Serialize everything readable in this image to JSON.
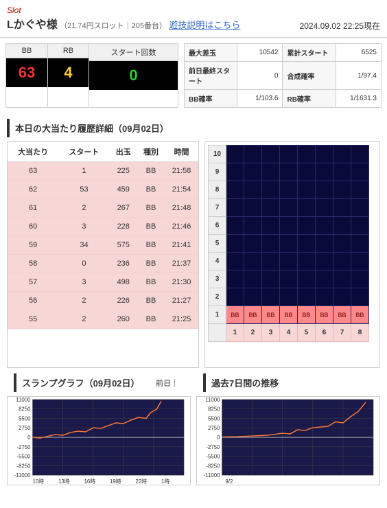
{
  "header": {
    "slot_label": "Slot",
    "machine_name": "Lかぐや様",
    "machine_sub": "（21.74円スロット｜205番台）",
    "guide_link": "遊技説明はこちら",
    "timestamp": "2024.09.02 22:25現在"
  },
  "counters": {
    "bb_label": "BB",
    "bb_value": "63",
    "rb_label": "RB",
    "rb_value": "4",
    "start_label": "スタート回数",
    "start_value": "0"
  },
  "stats": {
    "rows": [
      {
        "l1": "最大差玉",
        "v1": "10542",
        "l2": "累計スタート",
        "v2": "6525"
      },
      {
        "l1": "前日最終スタート",
        "v1": "0",
        "l2": "合成確率",
        "v2": "1/97.4"
      },
      {
        "l1": "BB確率",
        "v1": "1/103.6",
        "l2": "RB確率",
        "v2": "1/1631.3"
      }
    ]
  },
  "history": {
    "title": "本日の大当たり履歴詳細（09月02日）",
    "headers": [
      "大当たり",
      "スタート",
      "出玉",
      "種別",
      "時間"
    ],
    "rows": [
      [
        "63",
        "1",
        "225",
        "BB",
        "21:58"
      ],
      [
        "62",
        "53",
        "459",
        "BB",
        "21:54"
      ],
      [
        "61",
        "2",
        "267",
        "BB",
        "21:48"
      ],
      [
        "60",
        "3",
        "228",
        "BB",
        "21:46"
      ],
      [
        "59",
        "34",
        "575",
        "BB",
        "21:41"
      ],
      [
        "58",
        "0",
        "236",
        "BB",
        "21:37"
      ],
      [
        "57",
        "3",
        "498",
        "BB",
        "21:30"
      ],
      [
        "56",
        "2",
        "226",
        "BB",
        "21:27"
      ],
      [
        "55",
        "2",
        "260",
        "BB",
        "21:25"
      ]
    ]
  },
  "grid": {
    "y_labels": [
      "10",
      "9",
      "8",
      "7",
      "6",
      "5",
      "4",
      "3",
      "2",
      "1"
    ],
    "x_labels": [
      "1",
      "2",
      "3",
      "4",
      "5",
      "6",
      "7",
      "8"
    ],
    "bb_label": "BB",
    "cell_bg": "#0a0a3a",
    "bb_bg": "#f88"
  },
  "slump": {
    "title": "スランプグラフ（09月02日）",
    "prev_label": "前日｜",
    "y_ticks": [
      11000,
      8250,
      5500,
      2750,
      0,
      -2750,
      -5500,
      -8250,
      -11000
    ],
    "x_ticks": [
      "10時",
      "13時",
      "16時",
      "19時",
      "22時",
      "1時"
    ],
    "line_color": "#f73",
    "bg_color": "#1a1a4a",
    "points": [
      [
        0,
        0
      ],
      [
        5,
        -200
      ],
      [
        10,
        300
      ],
      [
        15,
        800
      ],
      [
        20,
        600
      ],
      [
        25,
        1400
      ],
      [
        30,
        1800
      ],
      [
        35,
        1600
      ],
      [
        40,
        2800
      ],
      [
        45,
        2600
      ],
      [
        50,
        3400
      ],
      [
        55,
        4200
      ],
      [
        60,
        4000
      ],
      [
        65,
        5000
      ],
      [
        70,
        5800
      ],
      [
        75,
        5500
      ],
      [
        78,
        7200
      ],
      [
        82,
        8200
      ],
      [
        85,
        10500
      ]
    ]
  },
  "week": {
    "title": "過去7日間の推移",
    "y_ticks": [
      11000,
      8250,
      5500,
      2750,
      0,
      -2750,
      -5500,
      -8250,
      -11000
    ],
    "x_ticks": [
      "9/2"
    ],
    "line_color": "#f73",
    "bg_color": "#1a1a4a",
    "points": [
      [
        0,
        100
      ],
      [
        10,
        200
      ],
      [
        20,
        400
      ],
      [
        30,
        600
      ],
      [
        40,
        1200
      ],
      [
        45,
        1000
      ],
      [
        50,
        2200
      ],
      [
        55,
        2000
      ],
      [
        60,
        2800
      ],
      [
        70,
        3200
      ],
      [
        75,
        4500
      ],
      [
        80,
        4200
      ],
      [
        85,
        6000
      ],
      [
        90,
        7500
      ],
      [
        95,
        10200
      ]
    ]
  }
}
